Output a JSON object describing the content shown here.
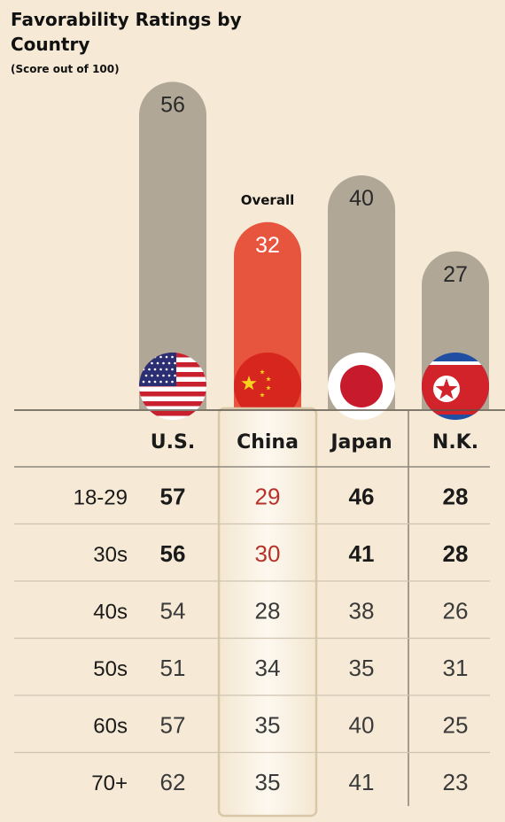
{
  "title": "Favorability Ratings by Country",
  "subtitle": "(Score out of 100)",
  "chart_data": {
    "type": "bar",
    "title": "Favorability Ratings by Country",
    "subtitle": "(Score out of 100)",
    "overall_label": "Overall",
    "countries": [
      "U.S.",
      "China",
      "Japan",
      "N.K."
    ],
    "flags": [
      "us-flag-icon",
      "china-flag-icon",
      "japan-flag-icon",
      "north-korea-flag-icon"
    ],
    "overall": [
      56,
      32,
      40,
      27
    ],
    "highlight": "China",
    "age_groups": [
      "18-29",
      "30s",
      "40s",
      "50s",
      "60s",
      "70+"
    ],
    "table": [
      [
        57,
        29,
        46,
        28
      ],
      [
        56,
        30,
        41,
        28
      ],
      [
        54,
        28,
        38,
        26
      ],
      [
        51,
        34,
        35,
        31
      ],
      [
        57,
        35,
        40,
        25
      ],
      [
        62,
        35,
        41,
        23
      ]
    ],
    "colors": {
      "background": "#f6ead6",
      "gray_bar": "#b0a796",
      "highlight_bar": "#e8553e",
      "highlight_text": "#b8322a",
      "text": "#222222"
    }
  }
}
